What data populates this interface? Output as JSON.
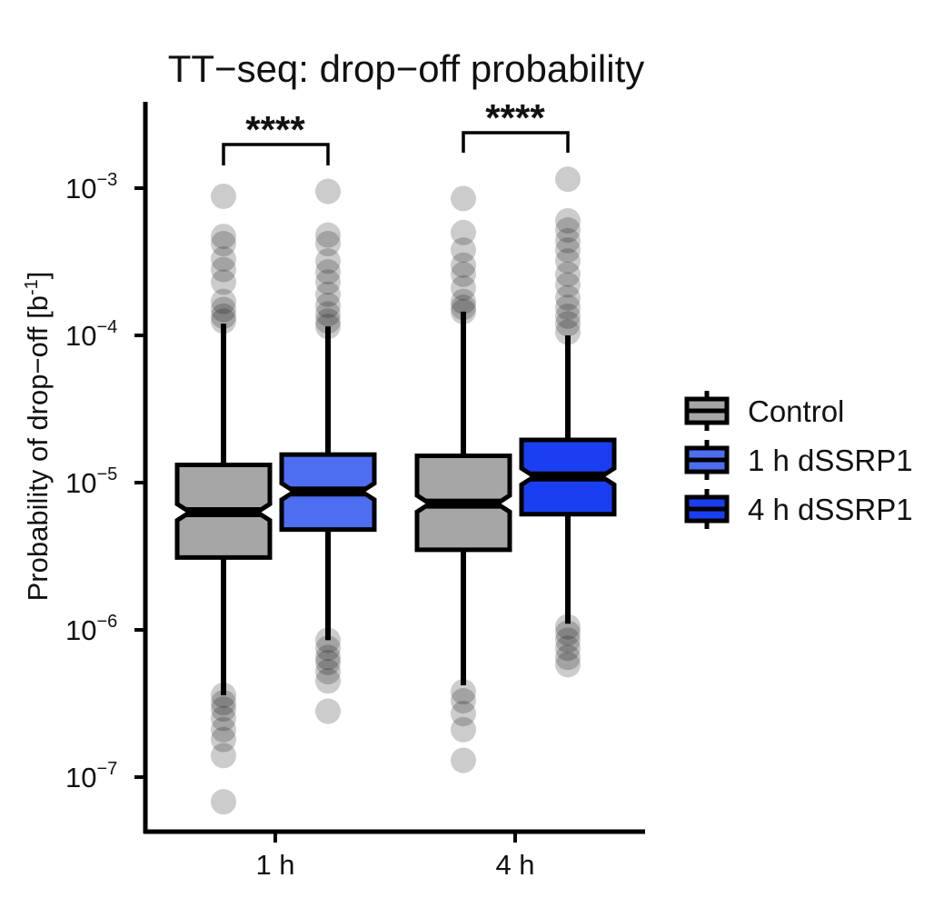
{
  "chart_data": {
    "type": "boxplot",
    "title": "TT−seq: drop−off probability",
    "ylabel_main": "Probability of drop−off [b",
    "ylabel_sup": "-1",
    "ylabel_end": "]",
    "yscale": "log10",
    "ylim": [
      4.5e-08,
      0.003
    ],
    "y_ticks": [
      {
        "value": 1e-07,
        "base": "10",
        "exp": "−7"
      },
      {
        "value": 1e-06,
        "base": "10",
        "exp": "−6"
      },
      {
        "value": 1e-05,
        "base": "10",
        "exp": "−5"
      },
      {
        "value": 0.0001,
        "base": "10",
        "exp": "−4"
      },
      {
        "value": 0.001,
        "base": "10",
        "exp": "−3"
      }
    ],
    "groups": [
      "1 h",
      "4 h"
    ],
    "legend": [
      {
        "name": "Control",
        "color": "#a6a6a6"
      },
      {
        "name": "1 h dSSRP1",
        "color": "#4d6ef0"
      },
      {
        "name": "4 h dSSRP1",
        "color": "#1a3ff2"
      }
    ],
    "boxes": [
      {
        "group": "1 h",
        "series": "Control",
        "color": "#a6a6a6",
        "whisker_low": 3.6e-07,
        "q1": 3.1e-06,
        "median": 6.3e-06,
        "q3": 1.32e-05,
        "whisker_high": 0.00012,
        "outliers": [
          0.00088,
          0.00047,
          0.00042,
          0.00033,
          0.00028,
          0.00023,
          0.00017,
          0.00015,
          0.000135,
          0.000125,
          3.6e-07,
          3.2e-07,
          2.9e-07,
          2.5e-07,
          2.1e-07,
          1.8e-07,
          1.4e-07,
          6.8e-08
        ]
      },
      {
        "group": "1 h",
        "series": "1 h dSSRP1",
        "color": "#4d6ef0",
        "whisker_low": 8.5e-07,
        "q1": 4.8e-06,
        "median": 8.7e-06,
        "q3": 1.55e-05,
        "whisker_high": 0.000115,
        "outliers": [
          0.00095,
          0.00048,
          0.00042,
          0.00032,
          0.00027,
          0.00023,
          0.00019,
          0.00016,
          0.00014,
          0.000125,
          0.000115,
          8.5e-07,
          7.5e-07,
          6.5e-07,
          6e-07,
          5.2e-07,
          4.5e-07,
          2.8e-07
        ]
      },
      {
        "group": "4 h",
        "series": "Control",
        "color": "#a6a6a6",
        "whisker_low": 4.2e-07,
        "q1": 3.5e-06,
        "median": 7.2e-06,
        "q3": 1.52e-05,
        "whisker_high": 0.000145,
        "outliers": [
          0.00085,
          0.0005,
          0.00038,
          0.0003,
          0.00026,
          0.00021,
          0.00017,
          0.000155,
          0.000145,
          3.8e-07,
          3.3e-07,
          2.7e-07,
          2.1e-07,
          1.3e-07
        ]
      },
      {
        "group": "4 h",
        "series": "4 h dSSRP1",
        "color": "#1a3ff2",
        "whisker_low": 1.1e-06,
        "q1": 6.1e-06,
        "median": 1.1e-05,
        "q3": 1.95e-05,
        "whisker_high": 0.0001,
        "outliers": [
          0.00115,
          0.0006,
          0.00052,
          0.00044,
          0.00038,
          0.00032,
          0.00026,
          0.00022,
          0.00018,
          0.000155,
          0.000135,
          0.00012,
          0.000105,
          1.05e-06,
          9.5e-07,
          8.5e-07,
          7.5e-07,
          6.5e-07,
          5.8e-07
        ]
      }
    ],
    "significance": [
      {
        "group": "1 h",
        "label": "****"
      },
      {
        "group": "4 h",
        "label": "****"
      }
    ],
    "grid": false,
    "legend_position": "right"
  }
}
